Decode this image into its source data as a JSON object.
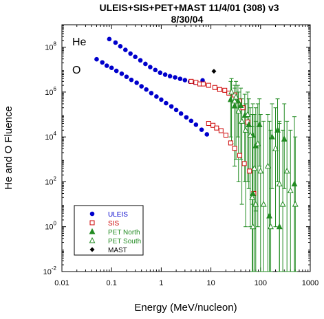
{
  "chart_data": {
    "type": "scatter",
    "title_line1": "ULEIS+SIS+PET+MAST 11/4/01 (308) v3",
    "title_line2": "8/30/04",
    "xlabel": "Energy (MeV/nucleon)",
    "ylabel": "He and O Fluence",
    "xscale": "log",
    "yscale": "log",
    "xlim": [
      0.01,
      1000
    ],
    "ylim": [
      0.01,
      1000000000
    ],
    "x_ticks": [
      {
        "value": 0.01,
        "label": "0.01"
      },
      {
        "value": 0.1,
        "label": "0.1"
      },
      {
        "value": 1,
        "label": "1"
      },
      {
        "value": 10,
        "label": "10"
      },
      {
        "value": 100,
        "label": "100"
      },
      {
        "value": 1000,
        "label": "1000"
      }
    ],
    "y_ticks": [
      {
        "value": 0.01,
        "base": "10",
        "exp": "-2"
      },
      {
        "value": 1,
        "base": "10",
        "exp": "0"
      },
      {
        "value": 100,
        "base": "10",
        "exp": "2"
      },
      {
        "value": 10000,
        "base": "10",
        "exp": "4"
      },
      {
        "value": 1000000,
        "base": "10",
        "exp": "6"
      },
      {
        "value": 100000000,
        "base": "10",
        "exp": "8"
      }
    ],
    "annotations": [
      "He",
      "O"
    ],
    "legend_position": "bottom-left",
    "series": [
      {
        "name": "ULEIS",
        "color": "#0000cc",
        "marker": "filled-circle",
        "points": [
          [
            0.09,
            230000000.0
          ],
          [
            0.12,
            160000000.0
          ],
          [
            0.15,
            110000000.0
          ],
          [
            0.19,
            76000000.0
          ],
          [
            0.24,
            52000000.0
          ],
          [
            0.3,
            37000000.0
          ],
          [
            0.38,
            26000000.0
          ],
          [
            0.48,
            18000000.0
          ],
          [
            0.6,
            13000000.0
          ],
          [
            0.76,
            9600000.0
          ],
          [
            0.95,
            7300000.0
          ],
          [
            1.2,
            6000000.0
          ],
          [
            1.5,
            5100000.0
          ],
          [
            1.9,
            4500000.0
          ],
          [
            2.4,
            3900000.0
          ],
          [
            3.0,
            3400000.0
          ],
          [
            3.8,
            2900000.0
          ],
          [
            4.8,
            2600000.0
          ],
          [
            6.8,
            3300000.0
          ],
          [
            0.05,
            29000000.0
          ],
          [
            0.065,
            21000000.0
          ],
          [
            0.08,
            15000000.0
          ],
          [
            0.1,
            12000000.0
          ],
          [
            0.125,
            8800000.0
          ],
          [
            0.16,
            6600000.0
          ],
          [
            0.2,
            4800000.0
          ],
          [
            0.25,
            3500000.0
          ],
          [
            0.32,
            2600000.0
          ],
          [
            0.4,
            1800000.0
          ],
          [
            0.5,
            1300000.0
          ],
          [
            0.63,
            900000.0
          ],
          [
            0.8,
            630000.0
          ],
          [
            1.0,
            460000.0
          ],
          [
            1.25,
            320000.0
          ],
          [
            1.6,
            230000.0
          ],
          [
            2.0,
            160000.0
          ],
          [
            2.5,
            110000.0
          ],
          [
            3.2,
            75000.0
          ],
          [
            4.0,
            52000.0
          ],
          [
            5.0,
            35000.0
          ],
          [
            6.5,
            21000.0
          ],
          [
            8.3,
            13000.0
          ]
        ]
      },
      {
        "name": "SIS",
        "color": "#cc0000",
        "marker": "open-square",
        "points": [
          [
            4.0,
            3000000.0
          ],
          [
            5.0,
            2700000.0
          ],
          [
            6.0,
            2300000.0
          ],
          [
            7.0,
            2300000.0
          ],
          [
            9.0,
            2000000.0
          ],
          [
            12.0,
            1600000.0
          ],
          [
            15.0,
            1300000.0
          ],
          [
            19.0,
            1200000.0
          ],
          [
            23.0,
            900000.0
          ],
          [
            30.0,
            740000.0
          ],
          [
            37.0,
            400000.0
          ],
          [
            44.0,
            200000.0
          ],
          [
            55.0,
            46000.0
          ],
          [
            9.0,
            40000.0
          ],
          [
            11.0,
            33000.0
          ],
          [
            13.0,
            25000.0
          ],
          [
            16.0,
            19000.0
          ],
          [
            20.0,
            12000.0
          ],
          [
            25.0,
            5400.0
          ],
          [
            30.0,
            3100.0
          ],
          [
            38.0,
            1500.0
          ],
          [
            47.0,
            650.0
          ],
          [
            60.0,
            300.0
          ],
          [
            73.0,
            30.0
          ]
        ]
      },
      {
        "name": "PET North",
        "color": "#228b22",
        "marker": "filled-triangle",
        "points": [
          [
            25.0,
            460000.0
          ],
          [
            30.0,
            240000.0
          ],
          [
            35.0,
            400000.0
          ],
          [
            40.0,
            250000.0
          ],
          [
            48.0,
            90000.0
          ],
          [
            58.0,
            35000.0
          ],
          [
            70.0,
            12000.0
          ],
          [
            80.0,
            4000.0
          ],
          [
            95.0,
            35000.0
          ],
          [
            70.0,
            30.0
          ],
          [
            170.0,
            10000.0
          ],
          [
            220.0,
            20000.0
          ],
          [
            300.0,
            8000.0
          ],
          [
            480.0,
            80.0
          ],
          [
            150.0,
            3.0
          ],
          [
            240.0,
            1.0
          ]
        ],
        "err_high": [
          3000000.0,
          1500000.0,
          2000000.0,
          1500000.0,
          800000.0,
          500000.0,
          300000.0,
          200000.0,
          500000.0,
          100000.0,
          300000.0,
          500000.0,
          300000.0,
          80000.0,
          50000.0,
          40000.0
        ],
        "err_low": [
          10000.0,
          500.0,
          10000.0,
          1000.0,
          100.0,
          50.0,
          10.0,
          5.0,
          500.0,
          0.01,
          50.0,
          100.0,
          50.0,
          0.01,
          0.01,
          0.01
        ]
      },
      {
        "name": "PET South",
        "color": "#228b22",
        "marker": "open-triangle",
        "points": [
          [
            26.0,
            1000000.0
          ],
          [
            30.0,
            400000.0
          ],
          [
            32.0,
            600000.0
          ],
          [
            36.0,
            140000.0
          ],
          [
            42.0,
            50000.0
          ],
          [
            50.0,
            20000.0
          ],
          [
            55.0,
            100000.0
          ],
          [
            62.0,
            12000.0
          ],
          [
            68.0,
            20.0
          ],
          [
            75.0,
            400.0
          ],
          [
            80.0,
            10.0
          ],
          [
            88.0,
            5000.0
          ],
          [
            100.0,
            300.0
          ],
          [
            115.0,
            10.0
          ],
          [
            140.0,
            500.0
          ],
          [
            160.0,
            1.0
          ],
          [
            200.0,
            3000.0
          ],
          [
            240.0,
            80.0
          ],
          [
            280.0,
            10.0
          ],
          [
            340.0,
            300.0
          ],
          [
            400.0,
            40.0
          ],
          [
            500.0,
            10.0
          ],
          [
            70.0,
            1.0
          ]
        ],
        "err_high": [
          4000000.0,
          2000000.0,
          3000000.0,
          1000000.0,
          500000.0,
          300000.0,
          1000000.0,
          200000.0,
          100000.0,
          100000.0,
          50000.0,
          300000.0,
          100000.0,
          50000.0,
          100000.0,
          20000.0,
          200000.0,
          50000.0,
          20000.0,
          50000.0,
          20000.0,
          10000.0,
          30000.0
        ],
        "err_low": [
          5000.0,
          500.0,
          1000.0,
          100.0,
          10.0,
          1.0,
          100.0,
          1.0,
          0.01,
          0.01,
          0.01,
          1.0,
          0.01,
          0.01,
          0.01,
          0.01,
          1.0,
          0.01,
          0.01,
          0.01,
          0.01,
          0.01,
          0.01
        ]
      },
      {
        "name": "MAST",
        "color": "#000000",
        "marker": "filled-diamond",
        "points": [
          [
            11.5,
            8500000.0
          ]
        ]
      }
    ]
  }
}
